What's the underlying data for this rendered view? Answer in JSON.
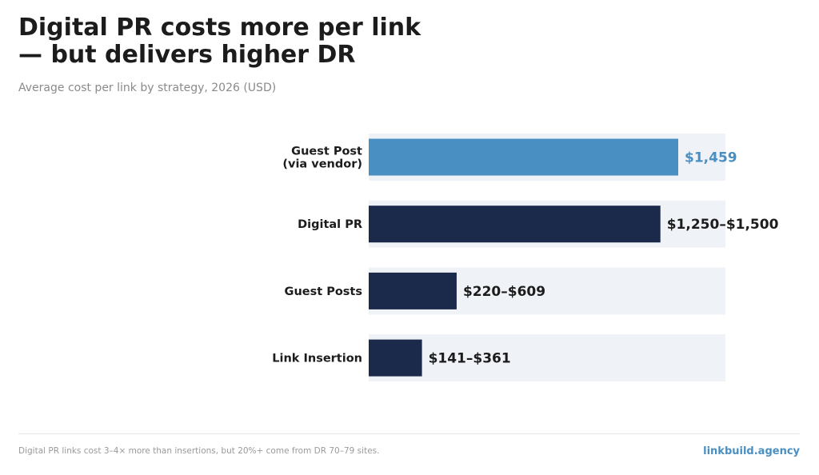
{
  "header": {
    "title_line1": "Digital PR costs more per link",
    "title_line2": "— but delivers higher DR",
    "subtitle": "Average cost per link by strategy, 2026 (USD)"
  },
  "footer": {
    "note": "Digital PR links cost 3–4× more than insertions, but 20%+ come from DR 70–79 sites.",
    "brand": "linkbuild.agency"
  },
  "colors": {
    "highlight": "#4a8fc2",
    "bar": "#1b2a4a",
    "track": "#eff2f7",
    "text": "#1c1c1c"
  },
  "chart_data": {
    "type": "bar",
    "orientation": "horizontal",
    "title": "Digital PR costs more per link — but delivers higher DR",
    "subtitle": "Average cost per link by strategy, 2026 (USD)",
    "xlim": [
      0,
      1700
    ],
    "grid": false,
    "categories": [
      {
        "lines": [
          "Guest Post",
          "(via vendor)"
        ],
        "value": 1459,
        "label": "$1,459",
        "highlight": true
      },
      {
        "lines": [
          "Digital PR"
        ],
        "value": 1375,
        "range": [
          1250,
          1500
        ],
        "label": "$1,250–$1,500",
        "highlight": false
      },
      {
        "lines": [
          "Guest Posts"
        ],
        "value": 414.5,
        "range": [
          220,
          609
        ],
        "label": "$220–$609",
        "highlight": false
      },
      {
        "lines": [
          "Link Insertion"
        ],
        "value": 251,
        "range": [
          141,
          361
        ],
        "label": "$141–$361",
        "highlight": false
      }
    ]
  }
}
